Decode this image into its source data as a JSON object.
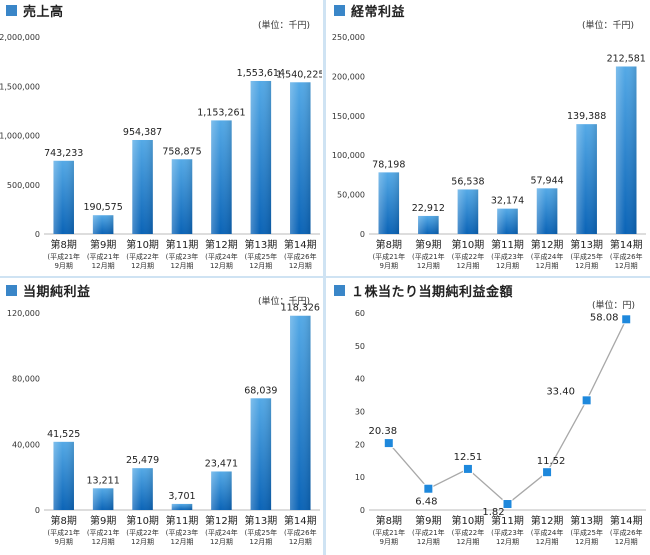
{
  "colors": {
    "bar_top": "#54a9e6",
    "bar_bottom": "#0a63b6",
    "title_square": "#3a86c8",
    "divider": "#cfe3f3",
    "line": "#a8a8a8",
    "marker": "#1e88dc"
  },
  "chart_data": [
    {
      "type": "bar",
      "title": "売上高",
      "unit": "(単位：千円)",
      "categories": [
        {
          "period": "第8期",
          "sub1": "(平成21年",
          "sub2": "9月期"
        },
        {
          "period": "第9期",
          "sub1": "(平成21年",
          "sub2": "12月期"
        },
        {
          "period": "第10期",
          "sub1": "(平成22年",
          "sub2": "12月期"
        },
        {
          "period": "第11期",
          "sub1": "(平成23年",
          "sub2": "12月期"
        },
        {
          "period": "第12期",
          "sub1": "(平成24年",
          "sub2": "12月期"
        },
        {
          "period": "第13期",
          "sub1": "(平成25年",
          "sub2": "12月期"
        },
        {
          "period": "第14期",
          "sub1": "(平成26年",
          "sub2": "12月期"
        }
      ],
      "values": [
        743233,
        190575,
        954387,
        758875,
        1153261,
        1553614,
        1540225
      ],
      "value_labels": [
        "743,233",
        "190,575",
        "954,387",
        "758,875",
        "1,153,261",
        "1,553,614",
        "1,540,225"
      ],
      "ylim": [
        0,
        2000000
      ],
      "yticks": [
        0,
        500000,
        1000000,
        1500000,
        2000000
      ],
      "ytick_labels": [
        "0",
        "500,000",
        "1,000,000",
        "1,500,000",
        "2,000,000"
      ],
      "grid": false
    },
    {
      "type": "bar",
      "title": "経常利益",
      "unit": "(単位：千円)",
      "categories": [
        {
          "period": "第8期",
          "sub1": "(平成21年",
          "sub2": "9月期"
        },
        {
          "period": "第9期",
          "sub1": "(平成21年",
          "sub2": "12月期"
        },
        {
          "period": "第10期",
          "sub1": "(平成22年",
          "sub2": "12月期"
        },
        {
          "period": "第11期",
          "sub1": "(平成23年",
          "sub2": "12月期"
        },
        {
          "period": "第12期",
          "sub1": "(平成24年",
          "sub2": "12月期"
        },
        {
          "period": "第13期",
          "sub1": "(平成25年",
          "sub2": "12月期"
        },
        {
          "period": "第14期",
          "sub1": "(平成26年",
          "sub2": "12月期"
        }
      ],
      "values": [
        78198,
        22912,
        56538,
        32174,
        57944,
        139388,
        212581
      ],
      "value_labels": [
        "78,198",
        "22,912",
        "56,538",
        "32,174",
        "57,944",
        "139,388",
        "212,581"
      ],
      "ylim": [
        0,
        250000
      ],
      "yticks": [
        0,
        50000,
        100000,
        150000,
        200000,
        250000
      ],
      "ytick_labels": [
        "0",
        "50,000",
        "100,000",
        "150,000",
        "200,000",
        "250,000"
      ],
      "grid": false
    },
    {
      "type": "bar",
      "title": "当期純利益",
      "unit": "(単位：千円)",
      "categories": [
        {
          "period": "第8期",
          "sub1": "(平成21年",
          "sub2": "9月期"
        },
        {
          "period": "第9期",
          "sub1": "(平成21年",
          "sub2": "12月期"
        },
        {
          "period": "第10期",
          "sub1": "(平成22年",
          "sub2": "12月期"
        },
        {
          "period": "第11期",
          "sub1": "(平成23年",
          "sub2": "12月期"
        },
        {
          "period": "第12期",
          "sub1": "(平成24年",
          "sub2": "12月期"
        },
        {
          "period": "第13期",
          "sub1": "(平成25年",
          "sub2": "12月期"
        },
        {
          "period": "第14期",
          "sub1": "(平成26年",
          "sub2": "12月期"
        }
      ],
      "values": [
        41525,
        13211,
        25479,
        3701,
        23471,
        68039,
        118326
      ],
      "value_labels": [
        "41,525",
        "13,211",
        "25,479",
        "3,701",
        "23,471",
        "68,039",
        "118,326"
      ],
      "ylim": [
        0,
        120000
      ],
      "yticks": [
        0,
        40000,
        80000,
        120000
      ],
      "ytick_labels": [
        "0",
        "40,000",
        "80,000",
        "120,000"
      ],
      "grid": false
    },
    {
      "type": "line",
      "title": "１株当たり当期純利益金額",
      "unit": "(単位：円)",
      "categories": [
        {
          "period": "第8期",
          "sub1": "(平成21年",
          "sub2": "9月期"
        },
        {
          "period": "第9期",
          "sub1": "(平成21年",
          "sub2": "12月期"
        },
        {
          "period": "第10期",
          "sub1": "(平成22年",
          "sub2": "12月期"
        },
        {
          "period": "第11期",
          "sub1": "(平成23年",
          "sub2": "12月期"
        },
        {
          "period": "第12期",
          "sub1": "(平成24年",
          "sub2": "12月期"
        },
        {
          "period": "第13期",
          "sub1": "(平成25年",
          "sub2": "12月期"
        },
        {
          "period": "第14期",
          "sub1": "(平成26年",
          "sub2": "12月期"
        }
      ],
      "values": [
        20.38,
        6.48,
        12.51,
        1.82,
        11.52,
        33.4,
        58.08
      ],
      "value_labels": [
        "20.38",
        "6.48",
        "12.51",
        "1.82",
        "11.52",
        "33.40",
        "58.08"
      ],
      "ylim": [
        0,
        60
      ],
      "yticks": [
        0,
        10,
        20,
        30,
        40,
        50,
        60
      ],
      "ytick_labels": [
        "0",
        "10",
        "20",
        "30",
        "40",
        "50",
        "60"
      ],
      "grid": false
    }
  ]
}
